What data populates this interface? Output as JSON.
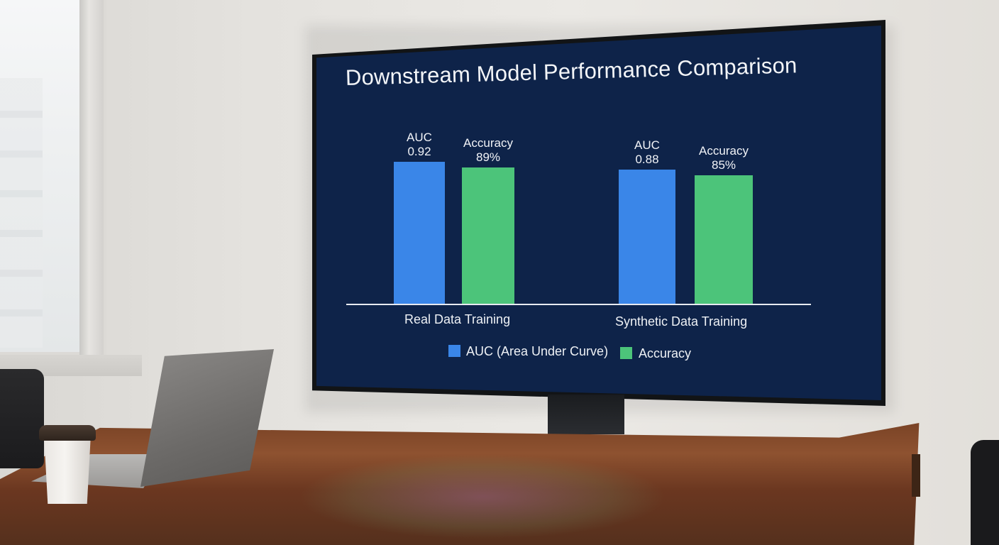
{
  "chart_data": {
    "type": "bar",
    "title": "Downstream Model Performance Comparison",
    "categories": [
      "Real Data Training",
      "Synthetic Data Training"
    ],
    "series": [
      {
        "name": "AUC (Area Under Curve)",
        "values": [
          0.92,
          0.88
        ],
        "labels": [
          "AUC\n0.92",
          "AUC\n0.88"
        ],
        "color": "#3a86e8"
      },
      {
        "name": "Accuracy",
        "values": [
          89,
          85
        ],
        "labels": [
          "Accuracy\n89%",
          "Accuracy\n85%"
        ],
        "color": "#4cc47a"
      }
    ],
    "legend_position": "bottom",
    "grid": false,
    "xlabel": "",
    "ylabel": ""
  },
  "colors": {
    "screen_background": "#0e2349",
    "auc": "#3a86e8",
    "accuracy": "#4cc47a"
  }
}
